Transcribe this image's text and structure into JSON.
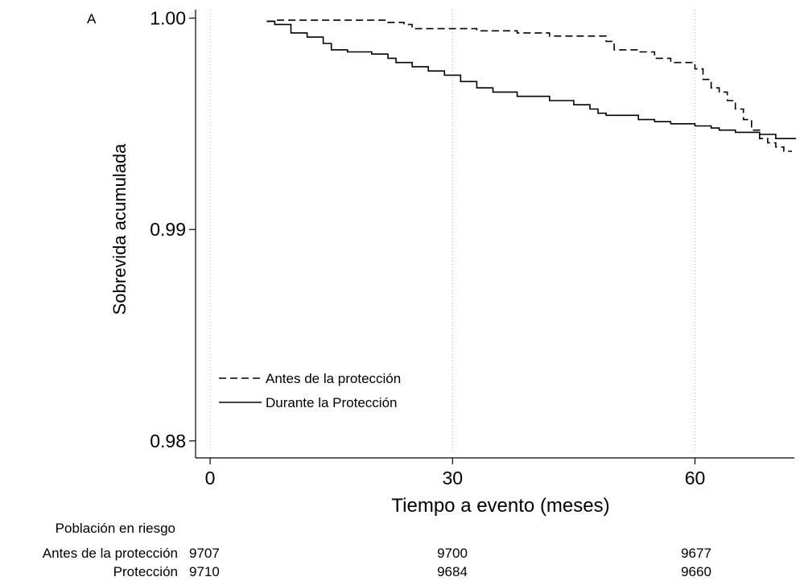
{
  "chart_data": {
    "type": "line",
    "panel_label": "A",
    "xlabel": "Tiempo a evento (meses)",
    "ylabel": "Sobrevida acumulada",
    "xlim": [
      -1.8,
      72.3
    ],
    "ylim": [
      0.9795,
      1.0004
    ],
    "x_ticks": [
      0,
      30,
      60
    ],
    "x_tick_labels": [
      "0",
      "30",
      "60"
    ],
    "y_ticks": [
      0.98,
      0.99,
      1.0
    ],
    "y_tick_labels": [
      "0.98",
      "0.99",
      "1.00"
    ],
    "grid": "vertical dotted at 0, 30, 60",
    "legend_position": "bottom-left inside plot",
    "series": [
      {
        "name": "Antes de la protección",
        "style": "dashed",
        "color": "#000000",
        "points": [
          [
            7,
            0.99985
          ],
          [
            8,
            0.99985
          ],
          [
            8,
            0.9999
          ],
          [
            22,
            0.9999
          ],
          [
            22,
            0.9998
          ],
          [
            24,
            0.9998
          ],
          [
            24,
            0.9997
          ],
          [
            25,
            0.9997
          ],
          [
            25,
            0.9995
          ],
          [
            33,
            0.9995
          ],
          [
            33,
            0.9994
          ],
          [
            38,
            0.9994
          ],
          [
            38,
            0.9993
          ],
          [
            42,
            0.9993
          ],
          [
            42,
            0.99915
          ],
          [
            49,
            0.99915
          ],
          [
            49,
            0.9989
          ],
          [
            50,
            0.9989
          ],
          [
            50,
            0.9985
          ],
          [
            53,
            0.9985
          ],
          [
            53,
            0.9984
          ],
          [
            55,
            0.9984
          ],
          [
            55,
            0.9981
          ],
          [
            57,
            0.9981
          ],
          [
            57,
            0.9979
          ],
          [
            60,
            0.9979
          ],
          [
            60,
            0.9976
          ],
          [
            61,
            0.9976
          ],
          [
            61,
            0.9971
          ],
          [
            62,
            0.9971
          ],
          [
            62,
            0.9967
          ],
          [
            63,
            0.9967
          ],
          [
            63,
            0.9965
          ],
          [
            64,
            0.9965
          ],
          [
            64,
            0.9961
          ],
          [
            65,
            0.9961
          ],
          [
            65,
            0.9957
          ],
          [
            66,
            0.9957
          ],
          [
            66,
            0.9952
          ],
          [
            67,
            0.9952
          ],
          [
            67,
            0.9947
          ],
          [
            68,
            0.9947
          ],
          [
            68,
            0.9943
          ],
          [
            69,
            0.9943
          ],
          [
            69,
            0.9941
          ],
          [
            70,
            0.9941
          ],
          [
            70,
            0.9939
          ],
          [
            71,
            0.9939
          ],
          [
            71,
            0.9937
          ],
          [
            72,
            0.9937
          ]
        ]
      },
      {
        "name": "Durante la Protección",
        "style": "solid",
        "color": "#000000",
        "points": [
          [
            7,
            0.99985
          ],
          [
            8,
            0.99985
          ],
          [
            8,
            0.9997
          ],
          [
            10,
            0.9997
          ],
          [
            10,
            0.9993
          ],
          [
            12,
            0.9993
          ],
          [
            12,
            0.9991
          ],
          [
            14,
            0.9991
          ],
          [
            14,
            0.9988
          ],
          [
            15,
            0.9988
          ],
          [
            15,
            0.9985
          ],
          [
            17,
            0.9985
          ],
          [
            17,
            0.9984
          ],
          [
            20,
            0.9984
          ],
          [
            20,
            0.9983
          ],
          [
            22,
            0.9983
          ],
          [
            22,
            0.9981
          ],
          [
            23,
            0.9981
          ],
          [
            23,
            0.9979
          ],
          [
            25,
            0.9979
          ],
          [
            25,
            0.9977
          ],
          [
            27,
            0.9977
          ],
          [
            27,
            0.9975
          ],
          [
            29,
            0.9975
          ],
          [
            29,
            0.9973
          ],
          [
            31,
            0.9973
          ],
          [
            31,
            0.997
          ],
          [
            33,
            0.997
          ],
          [
            33,
            0.9967
          ],
          [
            35,
            0.9967
          ],
          [
            35,
            0.9965
          ],
          [
            38,
            0.9965
          ],
          [
            38,
            0.9963
          ],
          [
            42,
            0.9963
          ],
          [
            42,
            0.9961
          ],
          [
            45,
            0.9961
          ],
          [
            45,
            0.9959
          ],
          [
            47,
            0.9959
          ],
          [
            47,
            0.9957
          ],
          [
            48,
            0.9957
          ],
          [
            48,
            0.9955
          ],
          [
            49,
            0.9955
          ],
          [
            49,
            0.9954
          ],
          [
            53,
            0.9954
          ],
          [
            53,
            0.9952
          ],
          [
            55,
            0.9952
          ],
          [
            55,
            0.9951
          ],
          [
            57,
            0.9951
          ],
          [
            57,
            0.995
          ],
          [
            60,
            0.995
          ],
          [
            60,
            0.9949
          ],
          [
            62,
            0.9949
          ],
          [
            62,
            0.9948
          ],
          [
            63,
            0.9948
          ],
          [
            63,
            0.9947
          ],
          [
            65,
            0.9947
          ],
          [
            65,
            0.9946
          ],
          [
            68,
            0.9946
          ],
          [
            68,
            0.9945
          ],
          [
            70,
            0.9945
          ],
          [
            70,
            0.9943
          ],
          [
            72.5,
            0.9943
          ]
        ]
      }
    ],
    "risk_table": {
      "title": "Población en riesgo",
      "rows": [
        {
          "label": "Antes de la protección",
          "values": [
            "9707",
            "9700",
            "9677"
          ]
        },
        {
          "label": "Protección",
          "values": [
            "9710",
            "9684",
            "9660"
          ]
        }
      ]
    }
  }
}
